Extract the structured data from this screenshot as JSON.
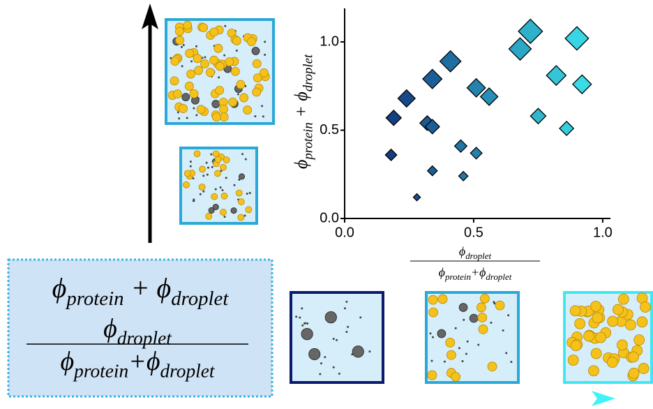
{
  "chart_data": {
    "type": "scatter",
    "y_label": [
      {
        "text": "ϕ"
      },
      {
        "text": "protein",
        "sub": true
      },
      {
        "text": " + "
      },
      {
        "text": "ϕ"
      },
      {
        "text": "droplet",
        "sub": true
      }
    ],
    "x_label": {
      "numerator": [
        {
          "text": "ϕ"
        },
        {
          "text": "droplet",
          "sub": true
        }
      ],
      "denominator": [
        {
          "text": "ϕ"
        },
        {
          "text": "protein",
          "sub": true
        },
        {
          "text": "+"
        },
        {
          "text": "ϕ"
        },
        {
          "text": "droplet",
          "sub": true
        }
      ]
    },
    "x": [
      0.72,
      0.9,
      0.68,
      0.41,
      0.82,
      0.34,
      0.92,
      0.51,
      0.56,
      0.24,
      0.19,
      0.75,
      0.32,
      0.34,
      0.86,
      0.45,
      0.51,
      0.18,
      0.34,
      0.46,
      0.28
    ],
    "y": [
      1.06,
      1.02,
      0.96,
      0.89,
      0.81,
      0.79,
      0.76,
      0.74,
      0.69,
      0.68,
      0.57,
      0.58,
      0.54,
      0.52,
      0.51,
      0.41,
      0.37,
      0.36,
      0.27,
      0.24,
      0.12
    ],
    "xlim": [
      0,
      1.03
    ],
    "ylim": [
      0,
      1.19
    ],
    "xticks": [
      {
        "value": 0,
        "label": "0.0"
      },
      {
        "value": 0.5,
        "label": "0.5"
      },
      {
        "value": 1,
        "label": "1.0"
      }
    ],
    "yticks": [
      {
        "value": 0,
        "label": "0.0"
      },
      {
        "value": 0.5,
        "label": "0.5"
      },
      {
        "value": 1,
        "label": "1.0"
      }
    ],
    "colormap": [
      "#0b1668",
      "#3ef2f6"
    ],
    "marker": "diamond"
  }
}
